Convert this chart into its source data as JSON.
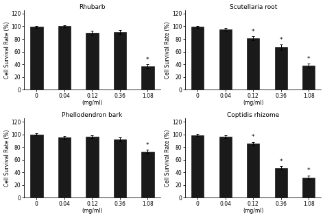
{
  "subplots": [
    {
      "title": "Rhubarb",
      "categories": [
        "0",
        "0.04",
        "0.12",
        "0.36",
        "1.08"
      ],
      "values": [
        99,
        100,
        90,
        91,
        37
      ],
      "errors": [
        2,
        2,
        3,
        3,
        3
      ],
      "significant": [
        false,
        false,
        false,
        false,
        true
      ]
    },
    {
      "title": "Scutellaria root",
      "categories": [
        "0",
        "0.04",
        "0.12",
        "0.36",
        "1.08"
      ],
      "values": [
        99,
        95,
        81,
        67,
        38
      ],
      "errors": [
        2,
        2,
        3,
        4,
        3
      ],
      "significant": [
        false,
        false,
        true,
        true,
        true
      ]
    },
    {
      "title": "Phellodendron bark",
      "categories": [
        "0",
        "0.04",
        "0.12",
        "0.36",
        "1.08"
      ],
      "values": [
        100,
        95,
        96,
        92,
        73
      ],
      "errors": [
        2,
        2,
        2,
        3,
        3
      ],
      "significant": [
        false,
        false,
        false,
        false,
        true
      ]
    },
    {
      "title": "Coptidis rhizome",
      "categories": [
        "0",
        "0.04",
        "0.12",
        "0.36",
        "1.08"
      ],
      "values": [
        99,
        96,
        85,
        47,
        32
      ],
      "errors": [
        2,
        2,
        3,
        3,
        3
      ],
      "significant": [
        false,
        false,
        true,
        true,
        true
      ]
    }
  ],
  "xlabel": "(mg/ml)",
  "ylabel": "Cell Survival Rate (%)",
  "ylim": [
    0,
    125
  ],
  "yticks": [
    0,
    20,
    40,
    60,
    80,
    100,
    120
  ],
  "bar_color": "#1a1a1a",
  "bar_width": 0.45,
  "bar_edge_color": "#000000",
  "background_color": "#ffffff",
  "title_fontsize": 6.5,
  "axis_fontsize": 5.5,
  "tick_fontsize": 5.5,
  "star_fontsize": 6.5,
  "capsize": 1.5,
  "error_linewidth": 0.7
}
